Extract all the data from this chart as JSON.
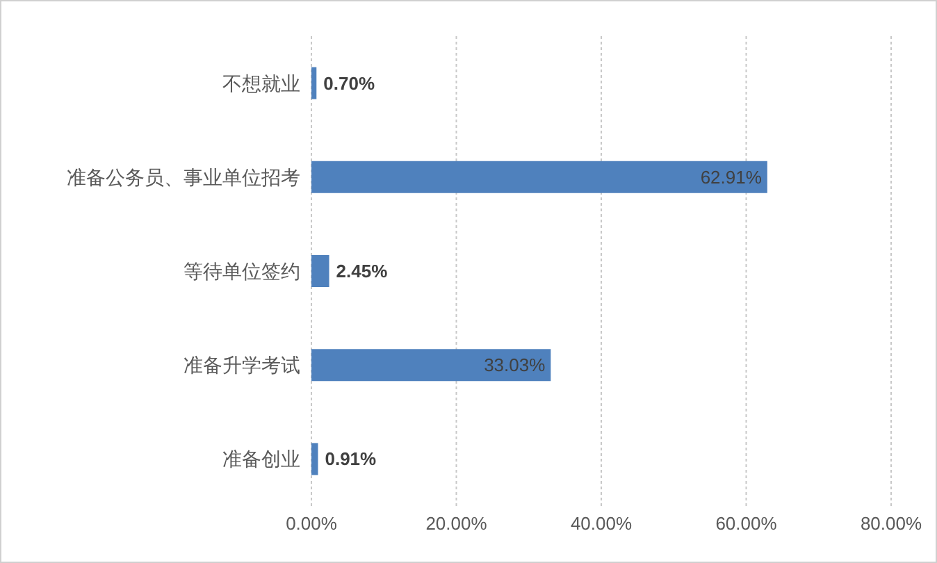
{
  "chart_data": {
    "type": "bar",
    "orientation": "horizontal",
    "categories": [
      "不想就业",
      "准备公务员、事业单位招考",
      "等待单位签约",
      "准备升学考试",
      "准备创业"
    ],
    "values": [
      0.7,
      62.91,
      2.45,
      33.03,
      0.91
    ],
    "value_labels": [
      "0.70%",
      "62.91%",
      "2.45%",
      "33.03%",
      "0.91%"
    ],
    "color": "#4f81bd",
    "xlim": [
      0,
      80
    ],
    "xticks": [
      {
        "value": 0,
        "label": "0.00%"
      },
      {
        "value": 20,
        "label": "20.00%"
      },
      {
        "value": 40,
        "label": "40.00%"
      },
      {
        "value": 60,
        "label": "60.00%"
      },
      {
        "value": 80,
        "label": "80.00%"
      }
    ],
    "grid": "x"
  }
}
